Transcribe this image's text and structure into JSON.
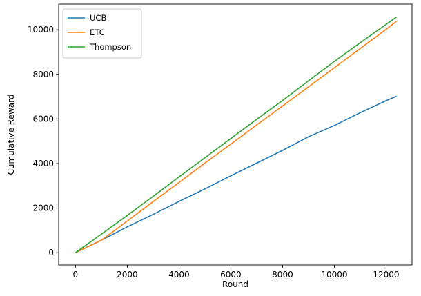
{
  "chart_data": {
    "type": "line",
    "title": "",
    "xlabel": "Round",
    "ylabel": "Cumulative Reward",
    "xlim": [
      -650,
      13000
    ],
    "ylim": [
      -550,
      11150
    ],
    "xticks": [
      0,
      2000,
      4000,
      6000,
      8000,
      10000,
      12000
    ],
    "yticks": [
      0,
      2000,
      4000,
      6000,
      8000,
      10000
    ],
    "grid": false,
    "legend_position": "top-left",
    "series": [
      {
        "name": "UCB",
        "color": "#1f77b4",
        "x": [
          0,
          1000,
          2000,
          3000,
          4000,
          5000,
          6000,
          7000,
          8000,
          9000,
          10000,
          11000,
          12000,
          12400
        ],
        "y": [
          0,
          560,
          1160,
          1720,
          2300,
          2860,
          3450,
          4020,
          4590,
          5200,
          5710,
          6280,
          6820,
          7020
        ]
      },
      {
        "name": "ETC",
        "color": "#ff7f0e",
        "x": [
          0,
          1000,
          2000,
          3000,
          4000,
          5000,
          6000,
          7000,
          8000,
          9000,
          10000,
          11000,
          12000,
          12400
        ],
        "y": [
          0,
          560,
          1420,
          2290,
          3150,
          4020,
          4870,
          5730,
          6580,
          7440,
          8300,
          9160,
          10020,
          10380
        ]
      },
      {
        "name": "Thompson",
        "color": "#2ca02c",
        "x": [
          0,
          1000,
          2000,
          3000,
          4000,
          5000,
          6000,
          7000,
          8000,
          9000,
          10000,
          11000,
          12000,
          12400
        ],
        "y": [
          0,
          830,
          1670,
          2530,
          3400,
          4260,
          5120,
          5980,
          6830,
          7710,
          8580,
          9420,
          10240,
          10570
        ]
      }
    ]
  }
}
